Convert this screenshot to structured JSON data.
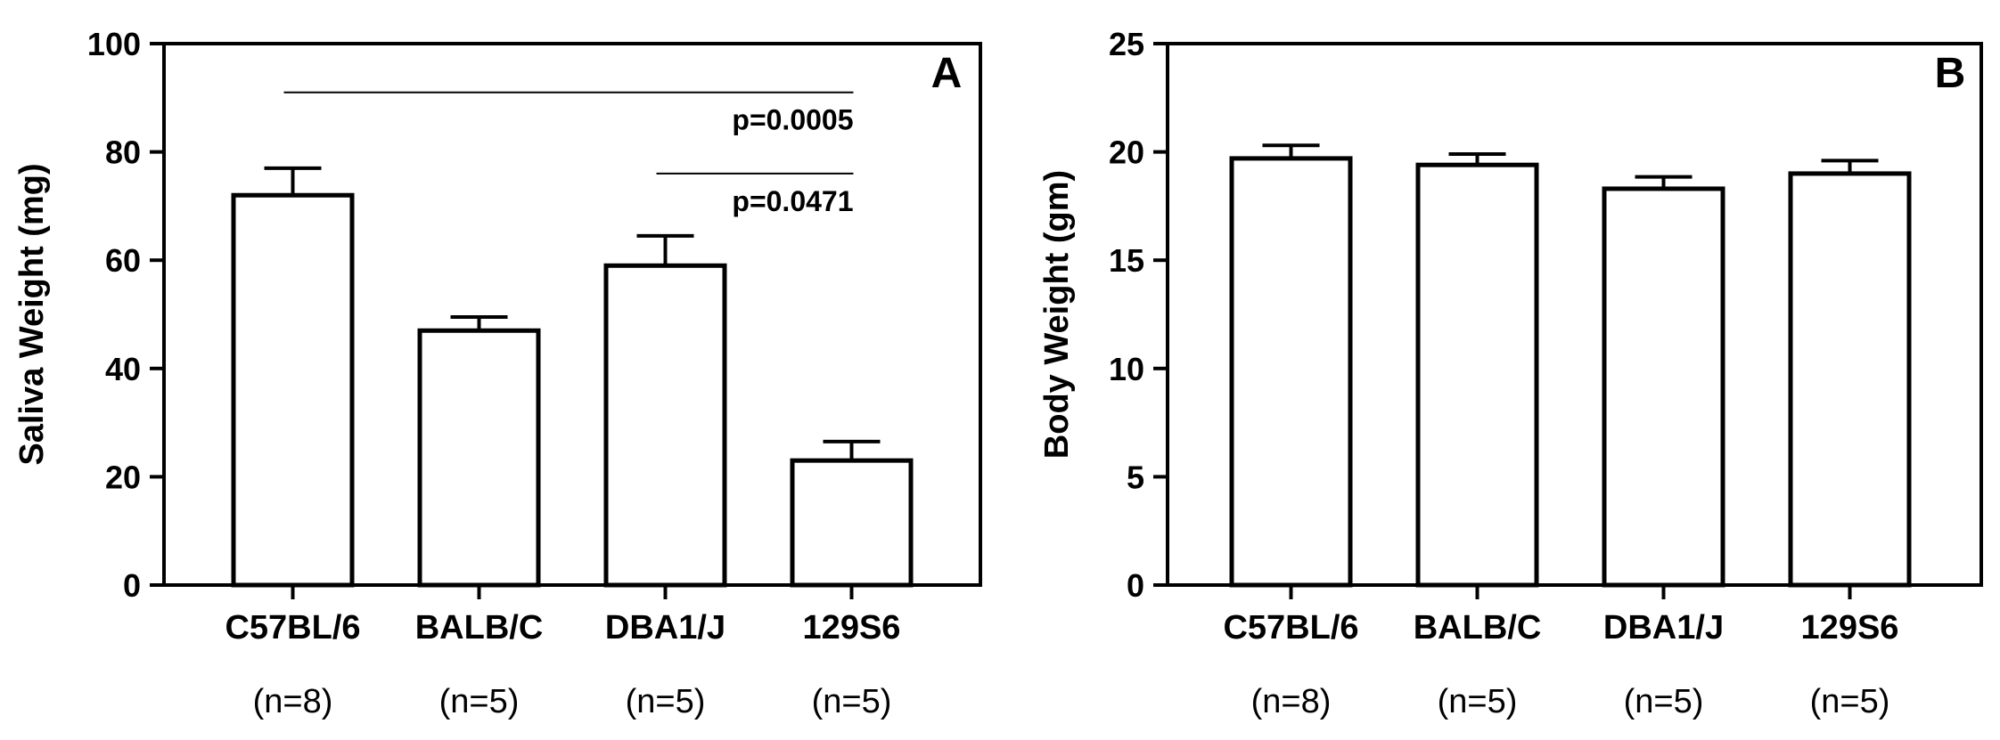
{
  "chart_data": [
    {
      "type": "bar",
      "panel": "A",
      "categories": [
        "C57BL/6",
        "BALB/C",
        "DBA1/J",
        "129S6"
      ],
      "sample_sizes": [
        "(n=8)",
        "(n=5)",
        "(n=5)",
        "(n=5)"
      ],
      "values": [
        72,
        47,
        59,
        23
      ],
      "errors": [
        5,
        2.5,
        5.5,
        3.5
      ],
      "ylabel": "Saliva Weight (mg)",
      "ylim": [
        0,
        100
      ],
      "yticks": [
        0,
        20,
        40,
        60,
        80,
        100
      ],
      "significance": [
        {
          "from": 0,
          "to": 3,
          "y": 91,
          "label": "p=0.0005"
        },
        {
          "from": 2,
          "to": 3,
          "y": 76,
          "label": "p=0.0471"
        }
      ]
    },
    {
      "type": "bar",
      "panel": "B",
      "categories": [
        "C57BL/6",
        "BALB/C",
        "DBA1/J",
        "129S6"
      ],
      "sample_sizes": [
        "(n=8)",
        "(n=5)",
        "(n=5)",
        "(n=5)"
      ],
      "values": [
        19.7,
        19.4,
        18.3,
        19.0
      ],
      "errors": [
        0.6,
        0.5,
        0.55,
        0.6
      ],
      "ylabel": "Body Weight (gm)",
      "ylim": [
        0,
        25
      ],
      "yticks": [
        0,
        5,
        10,
        15,
        20,
        25
      ],
      "significance": []
    }
  ]
}
